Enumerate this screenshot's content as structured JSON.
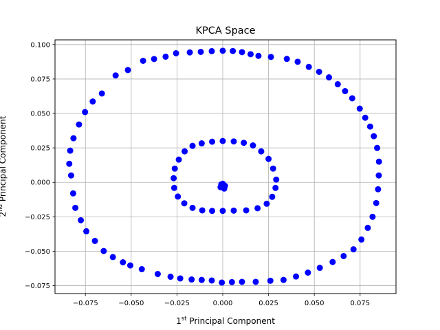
{
  "chart_data": {
    "type": "scatter",
    "title": "KPCA Space",
    "xlabel": {
      "ordinal": "1",
      "sup": "st",
      "rest": " Principal Component"
    },
    "ylabel": {
      "ordinal": "2",
      "sup": "nd",
      "rest": " Principal Component"
    },
    "xlim": [
      -0.0916,
      0.0946
    ],
    "ylim": [
      -0.0807,
      0.1034
    ],
    "xticks": [
      -0.075,
      -0.05,
      -0.025,
      0.0,
      0.025,
      0.05,
      0.075
    ],
    "xtick_labels": [
      "−0.075",
      "−0.050",
      "−0.025",
      "0.000",
      "0.025",
      "0.050",
      "0.075"
    ],
    "yticks": [
      -0.075,
      -0.05,
      -0.025,
      0.0,
      0.025,
      0.05,
      0.075,
      0.1
    ],
    "ytick_labels": [
      "−0.075",
      "−0.050",
      "−0.025",
      "0.000",
      "0.025",
      "0.050",
      "0.075",
      "0.100"
    ],
    "grid": true,
    "marker_color": "#0000ff",
    "series": [
      {
        "points": [
          [
            0.0,
            0.0955
          ],
          [
            0.0055,
            0.0953
          ],
          [
            0.0105,
            0.0945
          ],
          [
            0.0152,
            0.093
          ],
          [
            0.0195,
            0.0918
          ],
          [
            0.0263,
            0.091
          ],
          [
            0.035,
            0.0896
          ],
          [
            0.0409,
            0.0875
          ],
          [
            0.047,
            0.0838
          ],
          [
            0.0526,
            0.0802
          ],
          [
            0.058,
            0.0762
          ],
          [
            0.0628,
            0.0712
          ],
          [
            0.0668,
            0.0662
          ],
          [
            0.0707,
            0.061
          ],
          [
            0.0748,
            0.0535
          ],
          [
            0.0778,
            0.0469
          ],
          [
            0.0805,
            0.0405
          ],
          [
            0.0825,
            0.0335
          ],
          [
            0.0843,
            0.025
          ],
          [
            0.0853,
            0.015
          ],
          [
            0.0852,
            0.005
          ],
          [
            0.0848,
            -0.005
          ],
          [
            0.0838,
            -0.015
          ],
          [
            0.0818,
            -0.025
          ],
          [
            0.0792,
            -0.033
          ],
          [
            0.0757,
            -0.0415
          ],
          [
            0.0714,
            -0.0486
          ],
          [
            0.066,
            -0.0535
          ],
          [
            0.06,
            -0.0578
          ],
          [
            0.053,
            -0.062
          ],
          [
            0.0465,
            -0.0655
          ],
          [
            0.04,
            -0.0683
          ],
          [
            0.0332,
            -0.0708
          ],
          [
            0.026,
            -0.0714
          ],
          [
            0.018,
            -0.0722
          ],
          [
            0.0105,
            -0.0722
          ],
          [
            0.005,
            -0.0724
          ],
          [
            -0.0005,
            -0.0727
          ],
          [
            -0.006,
            -0.0712
          ],
          [
            -0.0115,
            -0.0708
          ],
          [
            -0.017,
            -0.0705
          ],
          [
            -0.0232,
            -0.0697
          ],
          [
            -0.0285,
            -0.0685
          ],
          [
            -0.0355,
            -0.0665
          ],
          [
            -0.0442,
            -0.063
          ],
          [
            -0.0505,
            -0.0603
          ],
          [
            -0.0545,
            -0.058
          ],
          [
            -0.06,
            -0.0542
          ],
          [
            -0.065,
            -0.0498
          ],
          [
            -0.0698,
            -0.0425
          ],
          [
            -0.0745,
            -0.0355
          ],
          [
            -0.0775,
            -0.0275
          ],
          [
            -0.0805,
            -0.0185
          ],
          [
            -0.0817,
            -0.008
          ],
          [
            -0.0828,
            0.005
          ],
          [
            -0.0838,
            0.0135
          ],
          [
            -0.0833,
            0.023
          ],
          [
            -0.0815,
            0.032
          ],
          [
            -0.0785,
            0.042
          ],
          [
            -0.0752,
            0.051
          ],
          [
            -0.071,
            0.0587
          ],
          [
            -0.066,
            0.0645
          ],
          [
            -0.0585,
            0.0776
          ],
          [
            -0.0518,
            0.0815
          ],
          [
            -0.0435,
            0.0882
          ],
          [
            -0.0375,
            0.0895
          ],
          [
            -0.0312,
            0.0912
          ],
          [
            -0.0255,
            0.0937
          ],
          [
            -0.018,
            0.0943
          ],
          [
            -0.012,
            0.0947
          ],
          [
            -0.006,
            0.0952
          ],
          [
            0.0,
            0.03
          ],
          [
            0.006,
            0.0297
          ],
          [
            0.0115,
            0.0287
          ],
          [
            0.0165,
            0.0268
          ],
          [
            0.021,
            0.0225
          ],
          [
            0.025,
            0.017
          ],
          [
            0.0275,
            0.01
          ],
          [
            0.0292,
            0.002
          ],
          [
            0.0288,
            -0.004
          ],
          [
            0.027,
            -0.0105
          ],
          [
            0.024,
            -0.0155
          ],
          [
            0.019,
            -0.0188
          ],
          [
            0.0128,
            -0.0203
          ],
          [
            0.006,
            -0.0205
          ],
          [
            0.0,
            -0.0207
          ],
          [
            -0.0058,
            -0.0207
          ],
          [
            -0.0112,
            -0.0203
          ],
          [
            -0.0165,
            -0.0185
          ],
          [
            -0.021,
            -0.0152
          ],
          [
            -0.0245,
            -0.0103
          ],
          [
            -0.0265,
            -0.004
          ],
          [
            -0.0268,
            0.003
          ],
          [
            -0.0262,
            0.01
          ],
          [
            -0.024,
            0.0165
          ],
          [
            -0.0208,
            0.0225
          ],
          [
            -0.0165,
            0.0265
          ],
          [
            -0.0115,
            0.0283
          ],
          [
            -0.0058,
            0.0295
          ],
          [
            0.0,
            -0.001
          ],
          [
            0.0012,
            -0.0025
          ],
          [
            -0.0012,
            -0.0035
          ],
          [
            0.0008,
            -0.0045
          ],
          [
            -0.0008,
            -0.0015
          ]
        ]
      }
    ]
  }
}
